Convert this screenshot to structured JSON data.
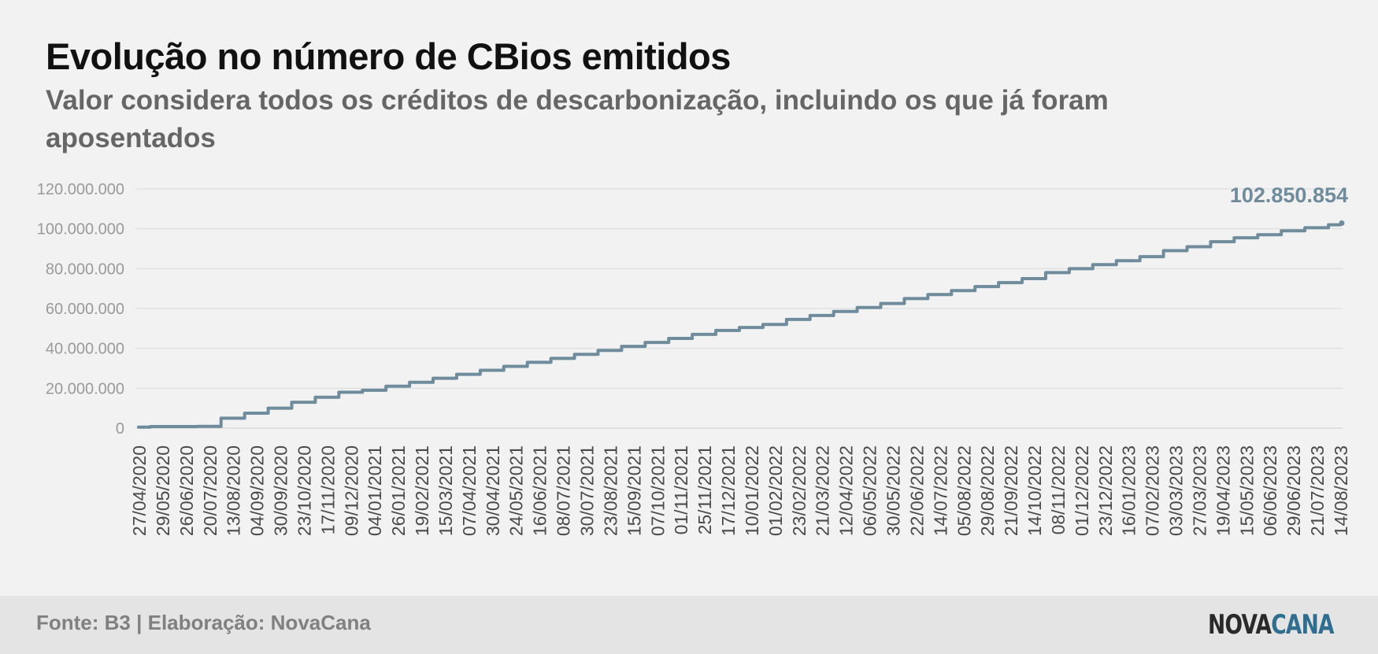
{
  "chart_data": {
    "type": "line",
    "title": "Evolução no número de CBios emitidos",
    "subtitle": "Valor considera todos os créditos de descarbonização, incluindo os que já foram aposentados",
    "xlabel": "",
    "ylabel": "",
    "ylim": [
      0,
      120000000
    ],
    "y_ticks": [
      "0",
      "20.000.000",
      "40.000.000",
      "60.000.000",
      "80.000.000",
      "100.000.000",
      "120.000.000"
    ],
    "x_ticks": [
      "27/04/2020",
      "29/05/2020",
      "26/06/2020",
      "20/07/2020",
      "13/08/2020",
      "04/09/2020",
      "30/09/2020",
      "23/10/2020",
      "17/11/2020",
      "09/12/2020",
      "04/01/2021",
      "26/01/2021",
      "19/02/2021",
      "15/03/2021",
      "07/04/2021",
      "30/04/2021",
      "24/05/2021",
      "16/06/2021",
      "08/07/2021",
      "30/07/2021",
      "23/08/2021",
      "15/09/2021",
      "07/10/2021",
      "01/11/2021",
      "25/11/2021",
      "17/12/2021",
      "10/01/2022",
      "01/02/2022",
      "23/02/2022",
      "21/03/2022",
      "12/04/2022",
      "06/05/2022",
      "30/05/2022",
      "22/06/2022",
      "14/07/2022",
      "05/08/2022",
      "29/08/2022",
      "21/09/2022",
      "14/10/2022",
      "08/11/2022",
      "01/12/2022",
      "23/12/2022",
      "16/01/2023",
      "07/02/2023",
      "03/03/2023",
      "27/03/2023",
      "19/04/2023",
      "15/05/2023",
      "06/06/2023",
      "29/06/2023",
      "21/07/2023",
      "14/08/2023"
    ],
    "series": [
      {
        "color": "#6e8c9b",
        "values": [
          500000,
          800000,
          800000,
          900000,
          5000000,
          7500000,
          10000000,
          13000000,
          15500000,
          18000000,
          19000000,
          21000000,
          23000000,
          25000000,
          27000000,
          29000000,
          31000000,
          33000000,
          35000000,
          37000000,
          39000000,
          41000000,
          43000000,
          45000000,
          47000000,
          49000000,
          50500000,
          52000000,
          54500000,
          56500000,
          58500000,
          60500000,
          62500000,
          65000000,
          67000000,
          69000000,
          71000000,
          73000000,
          75000000,
          78000000,
          80000000,
          82000000,
          84000000,
          86000000,
          89000000,
          91000000,
          93500000,
          95500000,
          97000000,
          99000000,
          100500000,
          102000000
        ],
        "last_value": 102850854,
        "last_label": "102.850.854"
      }
    ],
    "grid": true,
    "legend": "none"
  },
  "footer": {
    "source": "Fonte: B3 | Elaboração: NovaCana",
    "logo_part1": "NOVA",
    "logo_part2": "CANA"
  },
  "colors": {
    "line": "#6e8c9b",
    "grid": "#dcdcdc",
    "tick": "#9a9a9a",
    "xtick": "#4a4a4a",
    "end_label": "#6e8c9b"
  }
}
